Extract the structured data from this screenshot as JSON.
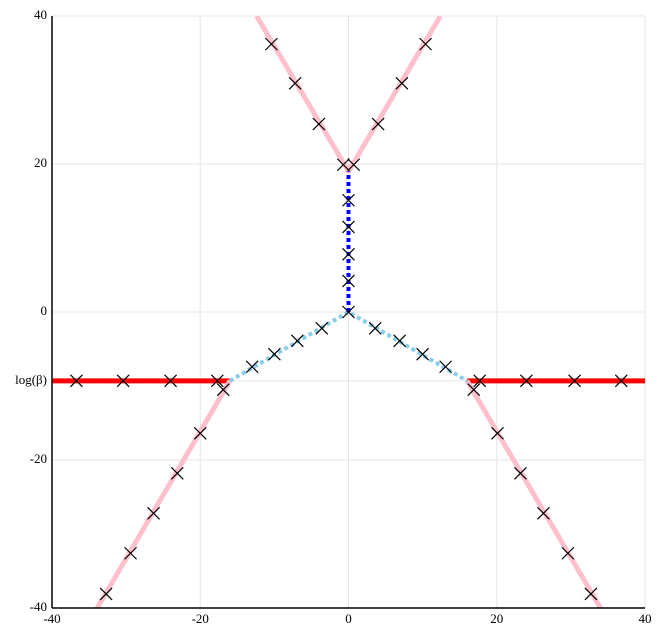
{
  "chart_data": {
    "type": "line",
    "xlim": [
      -40,
      40
    ],
    "ylim": [
      -40,
      40
    ],
    "xticks": [
      -40,
      -20,
      0,
      20,
      40
    ],
    "yticks": [
      -40,
      -20,
      {
        "value": -9.3,
        "label": "log(β)"
      },
      0,
      20,
      40
    ],
    "grid": true,
    "series": [
      {
        "mode": "line",
        "color": "#ff0000",
        "width": 5,
        "dash": "solid",
        "x": [
          -40,
          -16
        ],
        "values": [
          -9.3,
          -9.3
        ]
      },
      {
        "mode": "line",
        "color": "#ff0000",
        "width": 5,
        "dash": "solid",
        "x": [
          16,
          40
        ],
        "values": [
          -9.3,
          -9.3
        ]
      },
      {
        "mode": "line",
        "color": "#ffc0cb",
        "width": 5,
        "dash": "solid",
        "x": [
          -12.4,
          0,
          12.4
        ],
        "values": [
          40,
          19,
          40
        ]
      },
      {
        "mode": "line",
        "color": "#ffc0cb",
        "width": 5,
        "dash": "solid",
        "x": [
          -16,
          -33.9
        ],
        "values": [
          -9.3,
          -40
        ]
      },
      {
        "mode": "line",
        "color": "#ffc0cb",
        "width": 5,
        "dash": "solid",
        "x": [
          16,
          34
        ],
        "values": [
          -9.3,
          -40
        ]
      },
      {
        "mode": "line",
        "color": "#87ceeb",
        "width": 4,
        "dash": "dotted",
        "x": [
          -16,
          0,
          16
        ],
        "values": [
          -9.3,
          0,
          -9.3
        ]
      },
      {
        "mode": "line",
        "color": "#0000ff",
        "width": 4,
        "dash": "dotted",
        "x": [
          0,
          0
        ],
        "values": [
          0,
          19
        ]
      },
      {
        "mode": "markers",
        "color": "#000000",
        "width": 1.2,
        "dash": "solid",
        "x": [
          -10.4,
          -7.2,
          -4.0,
          -0.7,
          0.7,
          4.0,
          7.2,
          10.4,
          0,
          0,
          0,
          0,
          0,
          -3.6,
          -6.9,
          -10,
          -13,
          3.6,
          6.9,
          10,
          13.1,
          -36.7,
          -30.4,
          -24,
          -17.7,
          17.7,
          24,
          30.5,
          36.8,
          -16.9,
          -20,
          -23.1,
          -26.3,
          -29.4,
          -32.7,
          16.9,
          20.1,
          23.2,
          26.3,
          29.6,
          32.7
        ],
        "values": [
          36.2,
          30.9,
          25.4,
          19.9,
          19.9,
          25.4,
          30.9,
          36.2,
          15.1,
          11.5,
          7.8,
          4.2,
          0,
          -2.2,
          -3.9,
          -5.7,
          -7.4,
          -2.2,
          -3.9,
          -5.7,
          -7.4,
          -9.3,
          -9.3,
          -9.3,
          -9.3,
          -9.3,
          -9.3,
          -9.3,
          -9.3,
          -10.5,
          -16.4,
          -21.8,
          -27.2,
          -32.6,
          -38.1,
          -10.5,
          -16.4,
          -21.8,
          -27.2,
          -32.6,
          -38.1
        ]
      }
    ]
  }
}
